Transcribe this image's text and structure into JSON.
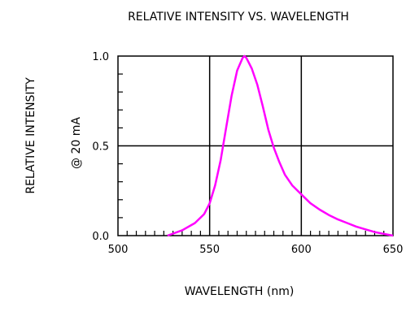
{
  "chart_data": {
    "type": "line",
    "title": "RELATIVE  INTENSITY  VS.  WAVELENGTH",
    "xlabel": "WAVELENGTH  (nm)",
    "ylabel": "RELATIVE  INTENSITY",
    "ylabel2": "@  20  mA",
    "xlim": [
      500,
      650
    ],
    "ylim": [
      0,
      1.0
    ],
    "x_ticks": [
      "500",
      "550",
      "600",
      "650"
    ],
    "y_ticks": [
      "0.0",
      "0.5",
      "1.0"
    ],
    "grid": true,
    "series": [
      {
        "color": "#ff00ff",
        "x": [
          527,
          535,
          542,
          547,
          550,
          553,
          556,
          559,
          562,
          565,
          568,
          569,
          570,
          571,
          573,
          576,
          579,
          582,
          585,
          588,
          591,
          595,
          600,
          605,
          610,
          615,
          620,
          625,
          630,
          635,
          640,
          645,
          650
        ],
        "y": [
          0.0,
          0.03,
          0.07,
          0.12,
          0.18,
          0.28,
          0.42,
          0.6,
          0.78,
          0.92,
          0.99,
          1.0,
          0.99,
          0.97,
          0.93,
          0.84,
          0.72,
          0.59,
          0.49,
          0.41,
          0.34,
          0.28,
          0.23,
          0.18,
          0.145,
          0.115,
          0.09,
          0.07,
          0.05,
          0.035,
          0.02,
          0.01,
          0.0
        ]
      }
    ]
  }
}
